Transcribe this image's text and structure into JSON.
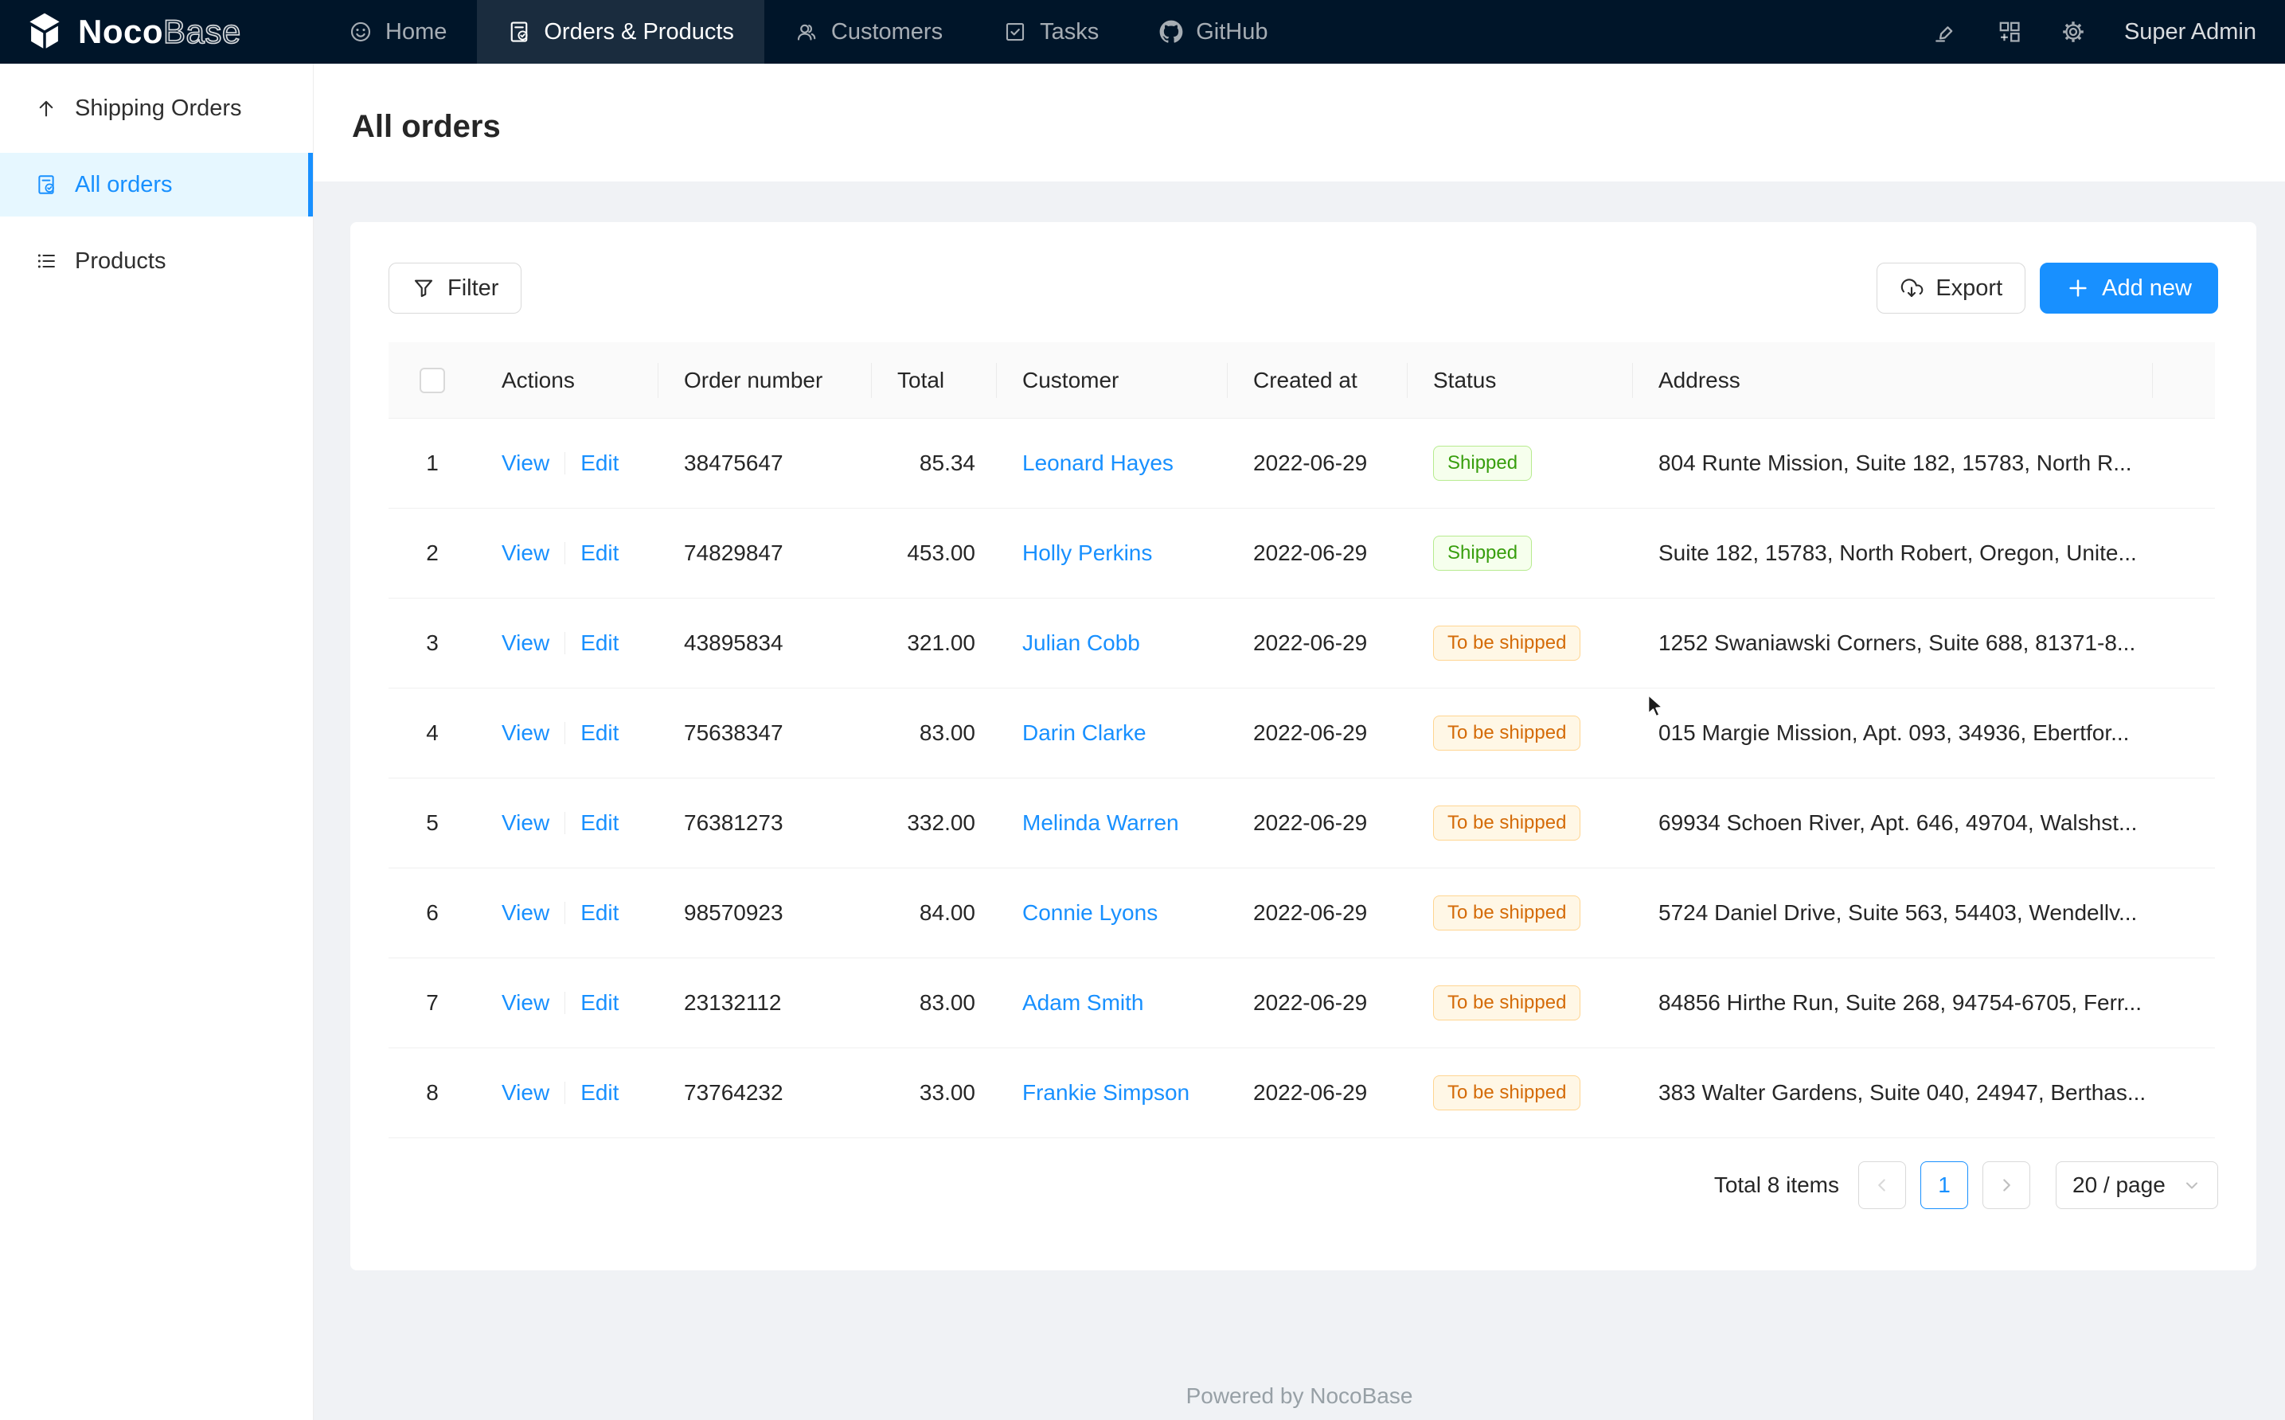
{
  "brand": {
    "name_bold": "Noco",
    "name_light": "Base"
  },
  "topnav": {
    "items": [
      {
        "label": "Home"
      },
      {
        "label": "Orders & Products",
        "active": true
      },
      {
        "label": "Customers"
      },
      {
        "label": "Tasks"
      },
      {
        "label": "GitHub"
      }
    ],
    "icons": [
      "highlighter-icon",
      "appstore-add-icon",
      "gear-icon"
    ],
    "user": "Super Admin"
  },
  "sidebar": {
    "items": [
      {
        "label": "Shipping Orders",
        "icon": "arrow-up-icon"
      },
      {
        "label": "All orders",
        "icon": "order-doc-icon",
        "active": true
      },
      {
        "label": "Products",
        "icon": "list-icon"
      }
    ]
  },
  "page": {
    "title": "All orders"
  },
  "toolbar": {
    "filter": "Filter",
    "export": "Export",
    "add_new": "Add new"
  },
  "table": {
    "columns": [
      "Actions",
      "Order number",
      "Total",
      "Customer",
      "Created at",
      "Status",
      "Address"
    ],
    "actions": {
      "view": "View",
      "edit": "Edit"
    },
    "rows": [
      {
        "index": "1",
        "order_number": "38475647",
        "total": "85.34",
        "customer": "Leonard Hayes",
        "created_at": "2022-06-29",
        "status": "Shipped",
        "address": "804 Runte Mission, Suite 182, 15783, North R..."
      },
      {
        "index": "2",
        "order_number": "74829847",
        "total": "453.00",
        "customer": "Holly Perkins",
        "created_at": "2022-06-29",
        "status": "Shipped",
        "address": "Suite 182, 15783, North Robert, Oregon, Unite..."
      },
      {
        "index": "3",
        "order_number": "43895834",
        "total": "321.00",
        "customer": "Julian Cobb",
        "created_at": "2022-06-29",
        "status": "To be shipped",
        "address": "1252 Swaniawski Corners, Suite 688, 81371-8..."
      },
      {
        "index": "4",
        "order_number": "75638347",
        "total": "83.00",
        "customer": "Darin Clarke",
        "created_at": "2022-06-29",
        "status": "To be shipped",
        "address": "015 Margie Mission, Apt. 093, 34936, Ebertfor..."
      },
      {
        "index": "5",
        "order_number": "76381273",
        "total": "332.00",
        "customer": "Melinda Warren",
        "created_at": "2022-06-29",
        "status": "To be shipped",
        "address": "69934 Schoen River, Apt. 646, 49704, Walshst..."
      },
      {
        "index": "6",
        "order_number": "98570923",
        "total": "84.00",
        "customer": "Connie Lyons",
        "created_at": "2022-06-29",
        "status": "To be shipped",
        "address": "5724 Daniel Drive, Suite 563, 54403, Wendellv..."
      },
      {
        "index": "7",
        "order_number": "23132112",
        "total": "83.00",
        "customer": "Adam Smith",
        "created_at": "2022-06-29",
        "status": "To be shipped",
        "address": "84856 Hirthe Run, Suite 268, 94754-6705, Ferr..."
      },
      {
        "index": "8",
        "order_number": "73764232",
        "total": "33.00",
        "customer": "Frankie Simpson",
        "created_at": "2022-06-29",
        "status": "To be shipped",
        "address": "383 Walter Gardens, Suite 040, 24947, Berthas..."
      }
    ]
  },
  "status_styles": {
    "Shipped": {
      "text": "#389e0d",
      "bg": "#f6ffed",
      "border": "#b7eb8f"
    },
    "To be shipped": {
      "text": "#d46b08",
      "bg": "#fff7e6",
      "border": "#ffd591"
    }
  },
  "pagination": {
    "total": "Total 8 items",
    "page": "1",
    "page_size": "20 / page"
  },
  "footer": {
    "text": "Powered by NocoBase"
  },
  "colors": {
    "primary": "#1890ff",
    "navbar_bg": "#001529",
    "page_bg": "#f0f2f5",
    "sidebar_active_bg": "#e6f7ff"
  }
}
